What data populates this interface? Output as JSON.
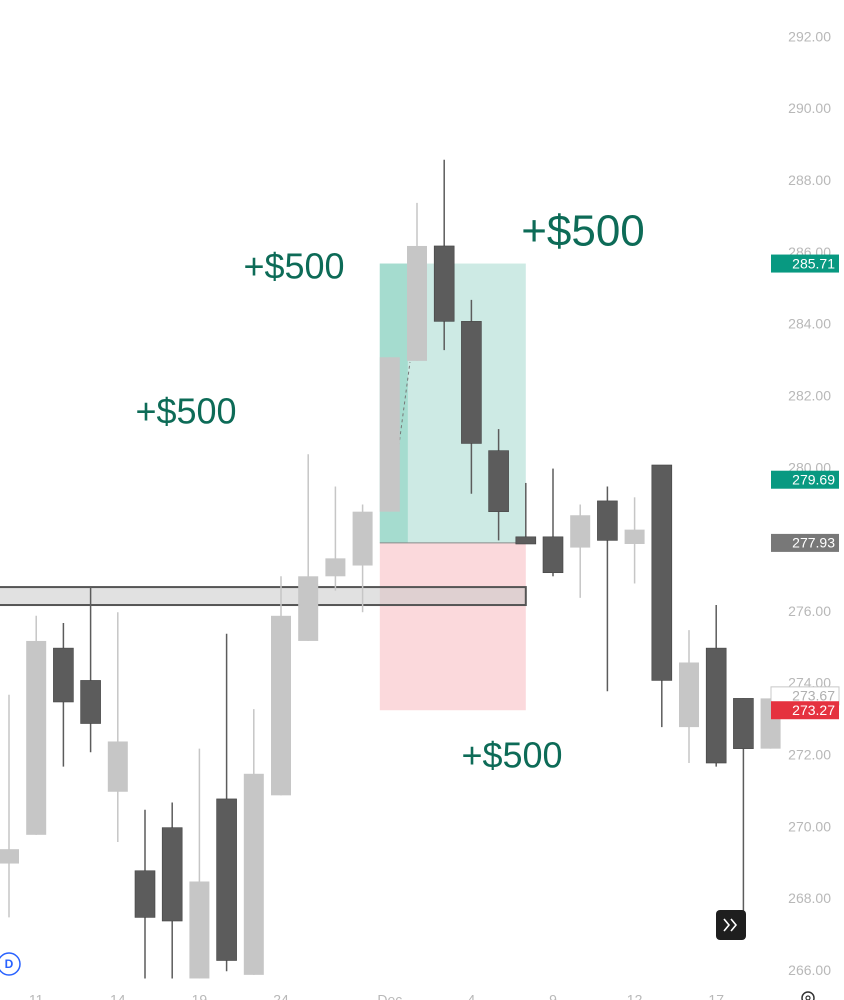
{
  "chart_data": {
    "type": "candlestick",
    "categories": [
      null,
      "11",
      null,
      null,
      "14",
      null,
      null,
      "19",
      null,
      null,
      "24",
      null,
      null,
      null,
      "Dec",
      null,
      null,
      "4",
      null,
      null,
      "9",
      null,
      null,
      "12",
      null,
      null,
      "17",
      null,
      null
    ],
    "open": [
      269.0,
      269.8,
      275.0,
      274.1,
      271.0,
      268.8,
      270.0,
      265.8,
      270.8,
      265.9,
      270.9,
      275.2,
      277.0,
      277.3,
      278.8,
      283.0,
      286.2,
      284.1,
      280.5,
      278.1,
      278.1,
      277.8,
      279.1,
      277.9,
      280.1,
      272.8,
      275.0,
      273.6,
      272.2
    ],
    "high": [
      273.7,
      275.9,
      275.7,
      276.7,
      276.0,
      270.5,
      270.7,
      272.2,
      275.4,
      273.3,
      277.0,
      280.4,
      279.5,
      279.0,
      283.1,
      287.4,
      288.6,
      284.7,
      281.1,
      279.6,
      280.0,
      279.0,
      279.5,
      279.2,
      280.1,
      275.5,
      276.2,
      273.6,
      273.6
    ],
    "low": [
      267.5,
      269.8,
      271.7,
      272.1,
      269.6,
      265.8,
      265.8,
      265.8,
      266.0,
      265.9,
      270.9,
      275.2,
      276.6,
      276.0,
      278.8,
      283.0,
      283.3,
      279.3,
      278.0,
      277.9,
      277.0,
      276.4,
      273.8,
      276.8,
      272.8,
      271.8,
      271.7,
      267.6,
      272.2
    ],
    "close": [
      269.4,
      275.2,
      273.5,
      272.9,
      272.4,
      267.5,
      267.4,
      268.5,
      266.3,
      271.5,
      275.9,
      277.0,
      277.5,
      278.8,
      283.1,
      286.2,
      284.1,
      280.7,
      278.8,
      277.9,
      277.1,
      278.7,
      278.0,
      278.3,
      274.1,
      274.6,
      271.8,
      272.2,
      273.6
    ],
    "up_color": "#c6c6c6",
    "down_color": "#5c5c5c",
    "ylim": [
      265.2,
      293.05
    ],
    "yticks": [
      {
        "value": 292,
        "label": "292.00"
      },
      {
        "value": 290,
        "label": "290.00"
      },
      {
        "value": 288,
        "label": "288.00"
      },
      {
        "value": 286,
        "label": "286.00"
      },
      {
        "value": 284,
        "label": "284.00"
      },
      {
        "value": 282,
        "label": "282.00"
      },
      {
        "value": 280,
        "label": "280.00"
      },
      {
        "value": 278,
        "label": "278.00"
      },
      {
        "value": 276,
        "label": "276.00"
      },
      {
        "value": 274,
        "label": "274.00"
      },
      {
        "value": 272,
        "label": "272.00"
      },
      {
        "value": 270,
        "label": "270.00"
      },
      {
        "value": 268,
        "label": "268.00"
      },
      {
        "value": 266,
        "label": "266.00"
      }
    ],
    "price_labels": [
      {
        "value": 285.71,
        "color": "#089981",
        "text_color": "#ffffff"
      },
      {
        "value": 279.69,
        "color": "#089981",
        "text_color": "#ffffff"
      },
      {
        "value": 277.93,
        "color": "#787878",
        "text_color": "#ffffff"
      },
      {
        "value": 273.67,
        "color": "#ffffff",
        "text_color": "#b0b0b0"
      },
      {
        "value": 273.27,
        "color": "#e5323f",
        "text_color": "#ffffff"
      }
    ],
    "zone": {
      "low": 276.2,
      "high": 276.7
    },
    "annotations": [
      "+$500",
      "+$500",
      "+$500",
      "+$500"
    ],
    "annotation_color": "#0d6b57",
    "event_marker": "D"
  }
}
